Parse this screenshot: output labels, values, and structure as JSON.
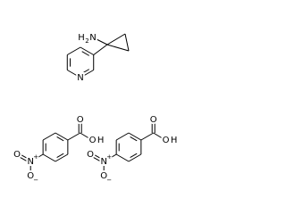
{
  "amine_molecule": {
    "amino_group": {
      "h": "H",
      "count": "2",
      "n": "N"
    },
    "ring_nitrogen": "N"
  },
  "nitrobenzoic_acids": [
    {
      "carbonyl_oxygen": "O",
      "hydroxyl_oxygen": "O",
      "hydroxyl_hydrogen": "H",
      "nitro_nitrogen": "N",
      "nitro_charge": "+",
      "nitro_oxygen": "O",
      "oxide_oxygen": "O",
      "oxide_charge": "−"
    },
    {
      "carbonyl_oxygen": "O",
      "hydroxyl_oxygen": "O",
      "hydroxyl_hydrogen": "H",
      "nitro_nitrogen": "N",
      "nitro_charge": "+",
      "nitro_oxygen": "O",
      "oxide_oxygen": "O",
      "oxide_charge": "−"
    }
  ]
}
